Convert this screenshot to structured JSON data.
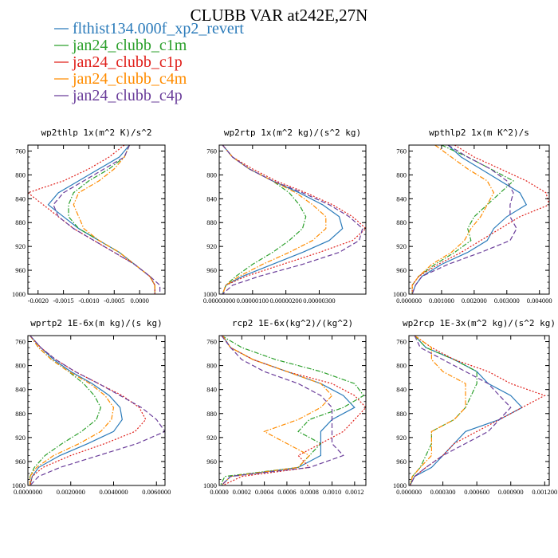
{
  "figure": {
    "title": "CLUBB VAR at242E,27N"
  },
  "legend": [
    {
      "label": "flthist134.000f_xp2_revert",
      "color": "#2b7bba",
      "dash": "solid"
    },
    {
      "label": "jan24_clubb_c1m",
      "color": "#2ca02c",
      "dash": "dashdot"
    },
    {
      "label": "jan24_clubb_c1p",
      "color": "#e0201b",
      "dash": "dotted"
    },
    {
      "label": "jan24_clubb_c4m",
      "color": "#ff8c00",
      "dash": "dashdot"
    },
    {
      "label": "jan24_clubb_c4p",
      "color": "#6a3d9a",
      "dash": "dashed"
    }
  ],
  "chart_data": [
    {
      "type": "line",
      "title": "wp2thlp  1x(m^2 K)/s^2",
      "xlim": [
        -0.0022,
        0.0005
      ],
      "xticks": [
        -0.002,
        -0.0015,
        -0.001,
        -0.0005,
        0.0
      ],
      "xtick_labels": [
        "-0.0020",
        "-0.0015",
        "-0.0010",
        "-0.0005",
        "0.0000"
      ],
      "ylim": [
        1000,
        750
      ],
      "yticks": [
        760,
        800,
        840,
        880,
        920,
        960,
        1000
      ],
      "y": [
        750,
        770,
        790,
        810,
        830,
        850,
        870,
        890,
        910,
        930,
        950,
        970,
        985,
        1000
      ],
      "series": [
        {
          "values": [
            -0.0002,
            -0.0004,
            -0.0008,
            -0.0012,
            -0.0016,
            -0.0018,
            -0.0015,
            -0.0012,
            -0.0008,
            -0.0004,
            -0.0001,
            0.0002,
            0.0003,
            0.0003
          ]
        },
        {
          "values": [
            -0.0002,
            -0.0003,
            -0.0006,
            -0.001,
            -0.0013,
            -0.0014,
            -0.0014,
            -0.0012,
            -0.0008,
            -0.0004,
            -0.0001,
            0.0002,
            0.0003,
            0.0003
          ]
        },
        {
          "values": [
            -0.0003,
            -0.0006,
            -0.001,
            -0.0015,
            -0.0022,
            -0.0019,
            -0.0016,
            -0.0013,
            -0.0009,
            -0.0005,
            -0.0001,
            0.0002,
            0.0003,
            0.0003
          ]
        },
        {
          "values": [
            -0.0002,
            -0.0003,
            -0.0005,
            -0.0008,
            -0.0012,
            -0.0013,
            -0.0012,
            -0.0011,
            -0.0008,
            -0.0004,
            -0.0001,
            0.0002,
            0.0003,
            0.0003
          ]
        },
        {
          "values": [
            -0.0002,
            -0.0003,
            -0.0007,
            -0.0011,
            -0.0015,
            -0.0017,
            -0.0016,
            -0.0013,
            -0.0009,
            -0.0005,
            -0.0001,
            0.0002,
            0.0004,
            0.0004
          ]
        }
      ]
    },
    {
      "type": "line",
      "title": "wp2rtp  1x(m^2 kg)/(s^2 kg)",
      "xlim": [
        0,
        4.4e-06
      ],
      "xticks": [
        0,
        1e-06,
        2e-06,
        3e-06
      ],
      "xtick_labels": [
        "0.00000000",
        "0.00000100",
        "0.00000200",
        "0.00000300"
      ],
      "ylim": [
        1000,
        750
      ],
      "yticks": [
        760,
        800,
        840,
        880,
        920,
        960,
        1000
      ],
      "y": [
        750,
        770,
        790,
        810,
        830,
        850,
        870,
        890,
        910,
        930,
        950,
        970,
        985,
        1000
      ],
      "series": [
        {
          "values": [
            1e-07,
            4e-07,
            9e-07,
            1.6e-06,
            2.4e-06,
            3.1e-06,
            3.6e-06,
            3.7e-06,
            3.3e-06,
            2.5e-06,
            1.6e-06,
            7e-07,
            2e-07,
            1e-07
          ]
        },
        {
          "values": [
            1e-07,
            4e-07,
            9e-07,
            1.6e-06,
            2.1e-06,
            2.4e-06,
            2.6e-06,
            2.5e-06,
            2.1e-06,
            1.6e-06,
            1e-06,
            5e-07,
            2e-07,
            1e-07
          ]
        },
        {
          "values": [
            1e-07,
            4e-07,
            1e-06,
            1.7e-06,
            2.6e-06,
            3.4e-06,
            4e-06,
            4.4e-06,
            4e-06,
            3e-06,
            1.9e-06,
            8e-07,
            2e-07,
            1e-07
          ]
        },
        {
          "values": [
            1e-07,
            4e-07,
            9e-07,
            1.6e-06,
            2.3e-06,
            2.8e-06,
            3.2e-06,
            3.2e-06,
            2.8e-06,
            2.1e-06,
            1.3e-06,
            6e-07,
            2e-07,
            1e-07
          ]
        },
        {
          "values": [
            1e-07,
            4e-07,
            9e-07,
            1.6e-06,
            2.5e-06,
            3.3e-06,
            3.9e-06,
            4.3e-06,
            4.2e-06,
            3.6e-06,
            2.5e-06,
            1.2e-06,
            4e-07,
            1e-07
          ]
        }
      ]
    },
    {
      "type": "line",
      "title": "wpthlp2  1x(m K^2)/s",
      "xlim": [
        0,
        0.0043
      ],
      "xticks": [
        0,
        0.001,
        0.002,
        0.003,
        0.004
      ],
      "xtick_labels": [
        "0.000000",
        "0.001000",
        "0.002000",
        "0.003000",
        "0.004000"
      ],
      "ylim": [
        1000,
        750
      ],
      "yticks": [
        760,
        800,
        840,
        880,
        920,
        960,
        1000
      ],
      "y": [
        750,
        770,
        790,
        810,
        830,
        850,
        870,
        890,
        910,
        930,
        950,
        970,
        985,
        1000
      ],
      "series": [
        {
          "values": [
            0.0012,
            0.0016,
            0.0022,
            0.0028,
            0.0034,
            0.0036,
            0.003,
            0.0026,
            0.0024,
            0.0018,
            0.001,
            0.0004,
            0.0002,
            0.0001
          ]
        },
        {
          "values": [
            0.001,
            0.0018,
            0.0025,
            0.0032,
            0.0028,
            0.0024,
            0.002,
            0.0018,
            0.0019,
            0.0014,
            0.0008,
            0.0003,
            0.0001,
            0.0001
          ]
        },
        {
          "values": [
            0.0014,
            0.002,
            0.0028,
            0.0036,
            0.0042,
            0.0043,
            0.0034,
            0.0028,
            0.0022,
            0.0016,
            0.0009,
            0.0003,
            0.0001,
            0.0001
          ]
        },
        {
          "values": [
            0.0008,
            0.0013,
            0.0018,
            0.0024,
            0.0026,
            0.0024,
            0.0022,
            0.0019,
            0.0017,
            0.0013,
            0.0007,
            0.0003,
            0.0001,
            0.0001
          ]
        },
        {
          "values": [
            0.0012,
            0.0018,
            0.0025,
            0.003,
            0.0032,
            0.0031,
            0.0031,
            0.0033,
            0.0031,
            0.0022,
            0.0012,
            0.0004,
            0.0002,
            0.0001
          ]
        }
      ]
    },
    {
      "type": "line",
      "title": "wprtp2  1E-6x(m kg)/(s kg)",
      "xlim": [
        0,
        0.0064
      ],
      "xticks": [
        0,
        0.002,
        0.004,
        0.006
      ],
      "xtick_labels": [
        "0.0000000",
        "0.0020000",
        "0.0040000",
        "0.0060000"
      ],
      "ylim": [
        1000,
        750
      ],
      "yticks": [
        760,
        800,
        840,
        880,
        920,
        960,
        1000
      ],
      "y": [
        750,
        770,
        790,
        810,
        830,
        850,
        870,
        890,
        910,
        930,
        950,
        970,
        985,
        1000
      ],
      "series": [
        {
          "values": [
            0.0001,
            0.0006,
            0.0012,
            0.002,
            0.003,
            0.0038,
            0.0043,
            0.0044,
            0.004,
            0.0028,
            0.0015,
            0.0005,
            0.0002,
            0.0001
          ]
        },
        {
          "values": [
            0.0001,
            0.0005,
            0.0011,
            0.0019,
            0.0026,
            0.0031,
            0.0034,
            0.0032,
            0.0025,
            0.0016,
            0.0008,
            0.0003,
            0.0001,
            0.0001
          ]
        },
        {
          "values": [
            0.0001,
            0.0006,
            0.0013,
            0.0022,
            0.0033,
            0.0044,
            0.0052,
            0.0055,
            0.005,
            0.0036,
            0.002,
            0.0007,
            0.0002,
            0.0001
          ]
        },
        {
          "values": [
            0.0001,
            0.0005,
            0.0011,
            0.0019,
            0.0029,
            0.0036,
            0.004,
            0.0039,
            0.0034,
            0.0024,
            0.0012,
            0.0004,
            0.0001,
            0.0001
          ]
        },
        {
          "values": [
            0.0001,
            0.0006,
            0.0013,
            0.0022,
            0.0033,
            0.0043,
            0.0053,
            0.006,
            0.0064,
            0.0051,
            0.0033,
            0.0015,
            0.0005,
            0.0001
          ]
        }
      ]
    },
    {
      "type": "line",
      "title": "rcp2  1E-6x(kg^2)/(kg^2)",
      "xlim": [
        0,
        0.0013
      ],
      "xticks": [
        0,
        0.0002,
        0.0004,
        0.0006,
        0.0008,
        0.001,
        0.0012
      ],
      "xtick_labels": [
        "0.0000",
        "0.0002",
        "0.0004",
        "0.0006",
        "0.0008",
        "0.0010",
        "0.0012"
      ],
      "ylim": [
        1000,
        750
      ],
      "yticks": [
        760,
        800,
        840,
        880,
        920,
        960,
        1000
      ],
      "y": [
        750,
        770,
        790,
        810,
        830,
        850,
        870,
        890,
        910,
        930,
        950,
        970,
        985,
        1000
      ],
      "series": [
        {
          "values": [
            3e-05,
            0.0001,
            0.0003,
            0.0006,
            0.0009,
            0.0011,
            0.0012,
            0.001,
            0.0009,
            0.0009,
            0.0009,
            0.0007,
            0.0001,
            2e-05
          ]
        },
        {
          "values": [
            2e-05,
            0.0002,
            0.0005,
            0.0009,
            0.0012,
            0.00128,
            0.0011,
            0.0008,
            0.0007,
            0.0009,
            0.0008,
            0.0007,
            5e-05,
            1e-05
          ]
        },
        {
          "values": [
            3e-05,
            0.0001,
            0.0003,
            0.0006,
            0.001,
            0.0012,
            0.0013,
            0.0012,
            0.0011,
            0.0009,
            0.0007,
            0.0008,
            0.0002,
            3e-05
          ]
        },
        {
          "values": [
            3e-05,
            0.0001,
            0.0003,
            0.0006,
            0.0009,
            0.001,
            0.0009,
            0.0007,
            0.0004,
            0.0006,
            0.0008,
            0.0007,
            0.0001,
            2e-05
          ]
        },
        {
          "values": [
            2e-05,
            0.0001,
            0.0002,
            0.0004,
            0.0007,
            0.0009,
            0.001,
            0.001,
            0.001,
            0.001,
            0.0011,
            0.0008,
            0.0001,
            2e-05
          ]
        }
      ]
    },
    {
      "type": "line",
      "title": "wp2rcp  1E-3x(m^2 kg)/(s^2 kg)",
      "xlim": [
        0,
        0.00124
      ],
      "xticks": [
        0,
        0.0003,
        0.0006,
        0.0009,
        0.0012
      ],
      "xtick_labels": [
        "0.000000",
        "0.000300",
        "0.000600",
        "0.000900",
        "0.001200"
      ],
      "ylim": [
        1000,
        750
      ],
      "yticks": [
        760,
        800,
        840,
        880,
        920,
        960,
        1000
      ],
      "y": [
        750,
        770,
        790,
        810,
        830,
        850,
        870,
        890,
        910,
        930,
        950,
        970,
        985,
        1000
      ],
      "series": [
        {
          "values": [
            5e-05,
            0.00015,
            0.0004,
            0.0006,
            0.0007,
            0.0009,
            0.001,
            0.0008,
            0.0005,
            0.0004,
            0.0003,
            0.0002,
            5e-05,
            1e-05
          ]
        },
        {
          "values": [
            5e-05,
            0.00015,
            0.0004,
            0.0006,
            0.0006,
            0.00055,
            0.0005,
            0.0004,
            0.0002,
            0.0002,
            0.00015,
            0.0001,
            3e-05,
            1e-05
          ]
        },
        {
          "values": [
            5e-05,
            0.0002,
            0.0004,
            0.0007,
            0.0009,
            0.0012,
            0.001,
            0.0008,
            0.0006,
            0.0004,
            0.0003,
            0.00015,
            5e-05,
            1e-05
          ]
        },
        {
          "values": [
            5e-05,
            0.0002,
            0.0002,
            0.0003,
            0.0005,
            0.0005,
            0.0005,
            0.0004,
            0.0002,
            0.0002,
            0.0002,
            0.0001,
            3e-05,
            1e-05
          ]
        },
        {
          "values": [
            5e-05,
            0.0001,
            0.0003,
            0.0005,
            0.0007,
            0.0008,
            0.0009,
            0.0008,
            0.0007,
            0.0005,
            0.0003,
            0.00015,
            5e-05,
            1e-05
          ]
        }
      ]
    }
  ]
}
